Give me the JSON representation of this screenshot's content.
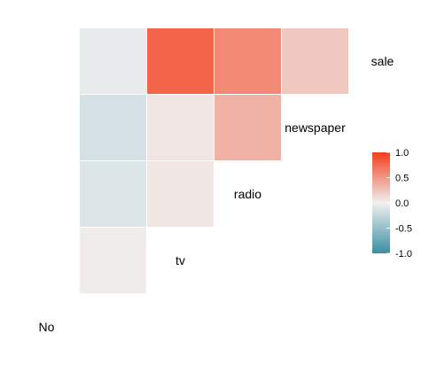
{
  "chart_data": {
    "type": "heatmap",
    "title": "",
    "variables": [
      "No",
      "tv",
      "radio",
      "newspaper",
      "sale"
    ],
    "cells": [
      {
        "row": "tv",
        "col": "No",
        "value": 0.02
      },
      {
        "row": "radio",
        "col": "No",
        "value": -0.11
      },
      {
        "row": "radio",
        "col": "tv",
        "value": 0.05
      },
      {
        "row": "newspaper",
        "col": "No",
        "value": -0.15
      },
      {
        "row": "newspaper",
        "col": "tv",
        "value": 0.06
      },
      {
        "row": "newspaper",
        "col": "radio",
        "value": 0.35
      },
      {
        "row": "sale",
        "col": "No",
        "value": -0.05
      },
      {
        "row": "sale",
        "col": "tv",
        "value": 0.78
      },
      {
        "row": "sale",
        "col": "radio",
        "value": 0.58
      },
      {
        "row": "sale",
        "col": "newspaper",
        "value": 0.23
      }
    ],
    "legend": {
      "ticks": [
        "1.0",
        "0.5",
        "0.0",
        "-0.5",
        "-1.0"
      ],
      "range": [
        -1,
        1
      ],
      "position": "right",
      "colors": {
        "low": "#3a8fa1",
        "mid": "#f0f0f0",
        "high": "#f23e1c"
      }
    },
    "grid": false
  }
}
